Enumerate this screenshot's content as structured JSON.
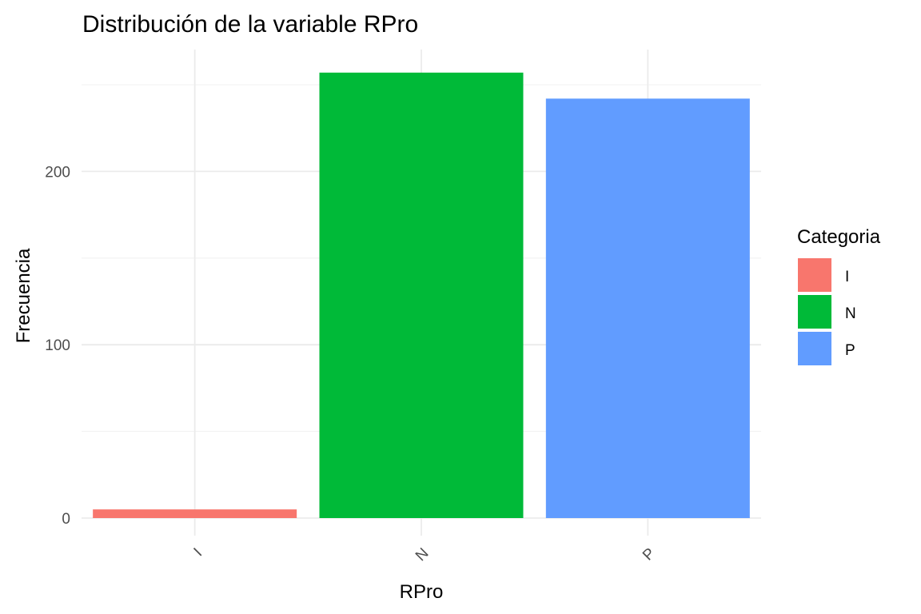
{
  "chart_data": {
    "type": "bar",
    "title": "Distribución de la variable RPro",
    "xlabel": "RPro",
    "ylabel": "Frecuencia",
    "categories": [
      "I",
      "N",
      "P"
    ],
    "values": [
      5,
      257,
      242
    ],
    "colors": [
      "#F8766D",
      "#00BA38",
      "#619CFF"
    ],
    "ylim": [
      0,
      270
    ],
    "yticks": [
      0,
      100,
      200
    ],
    "grid": true,
    "legend": {
      "title": "Categoria",
      "placement": "right",
      "entries": [
        "I",
        "N",
        "P"
      ]
    }
  }
}
